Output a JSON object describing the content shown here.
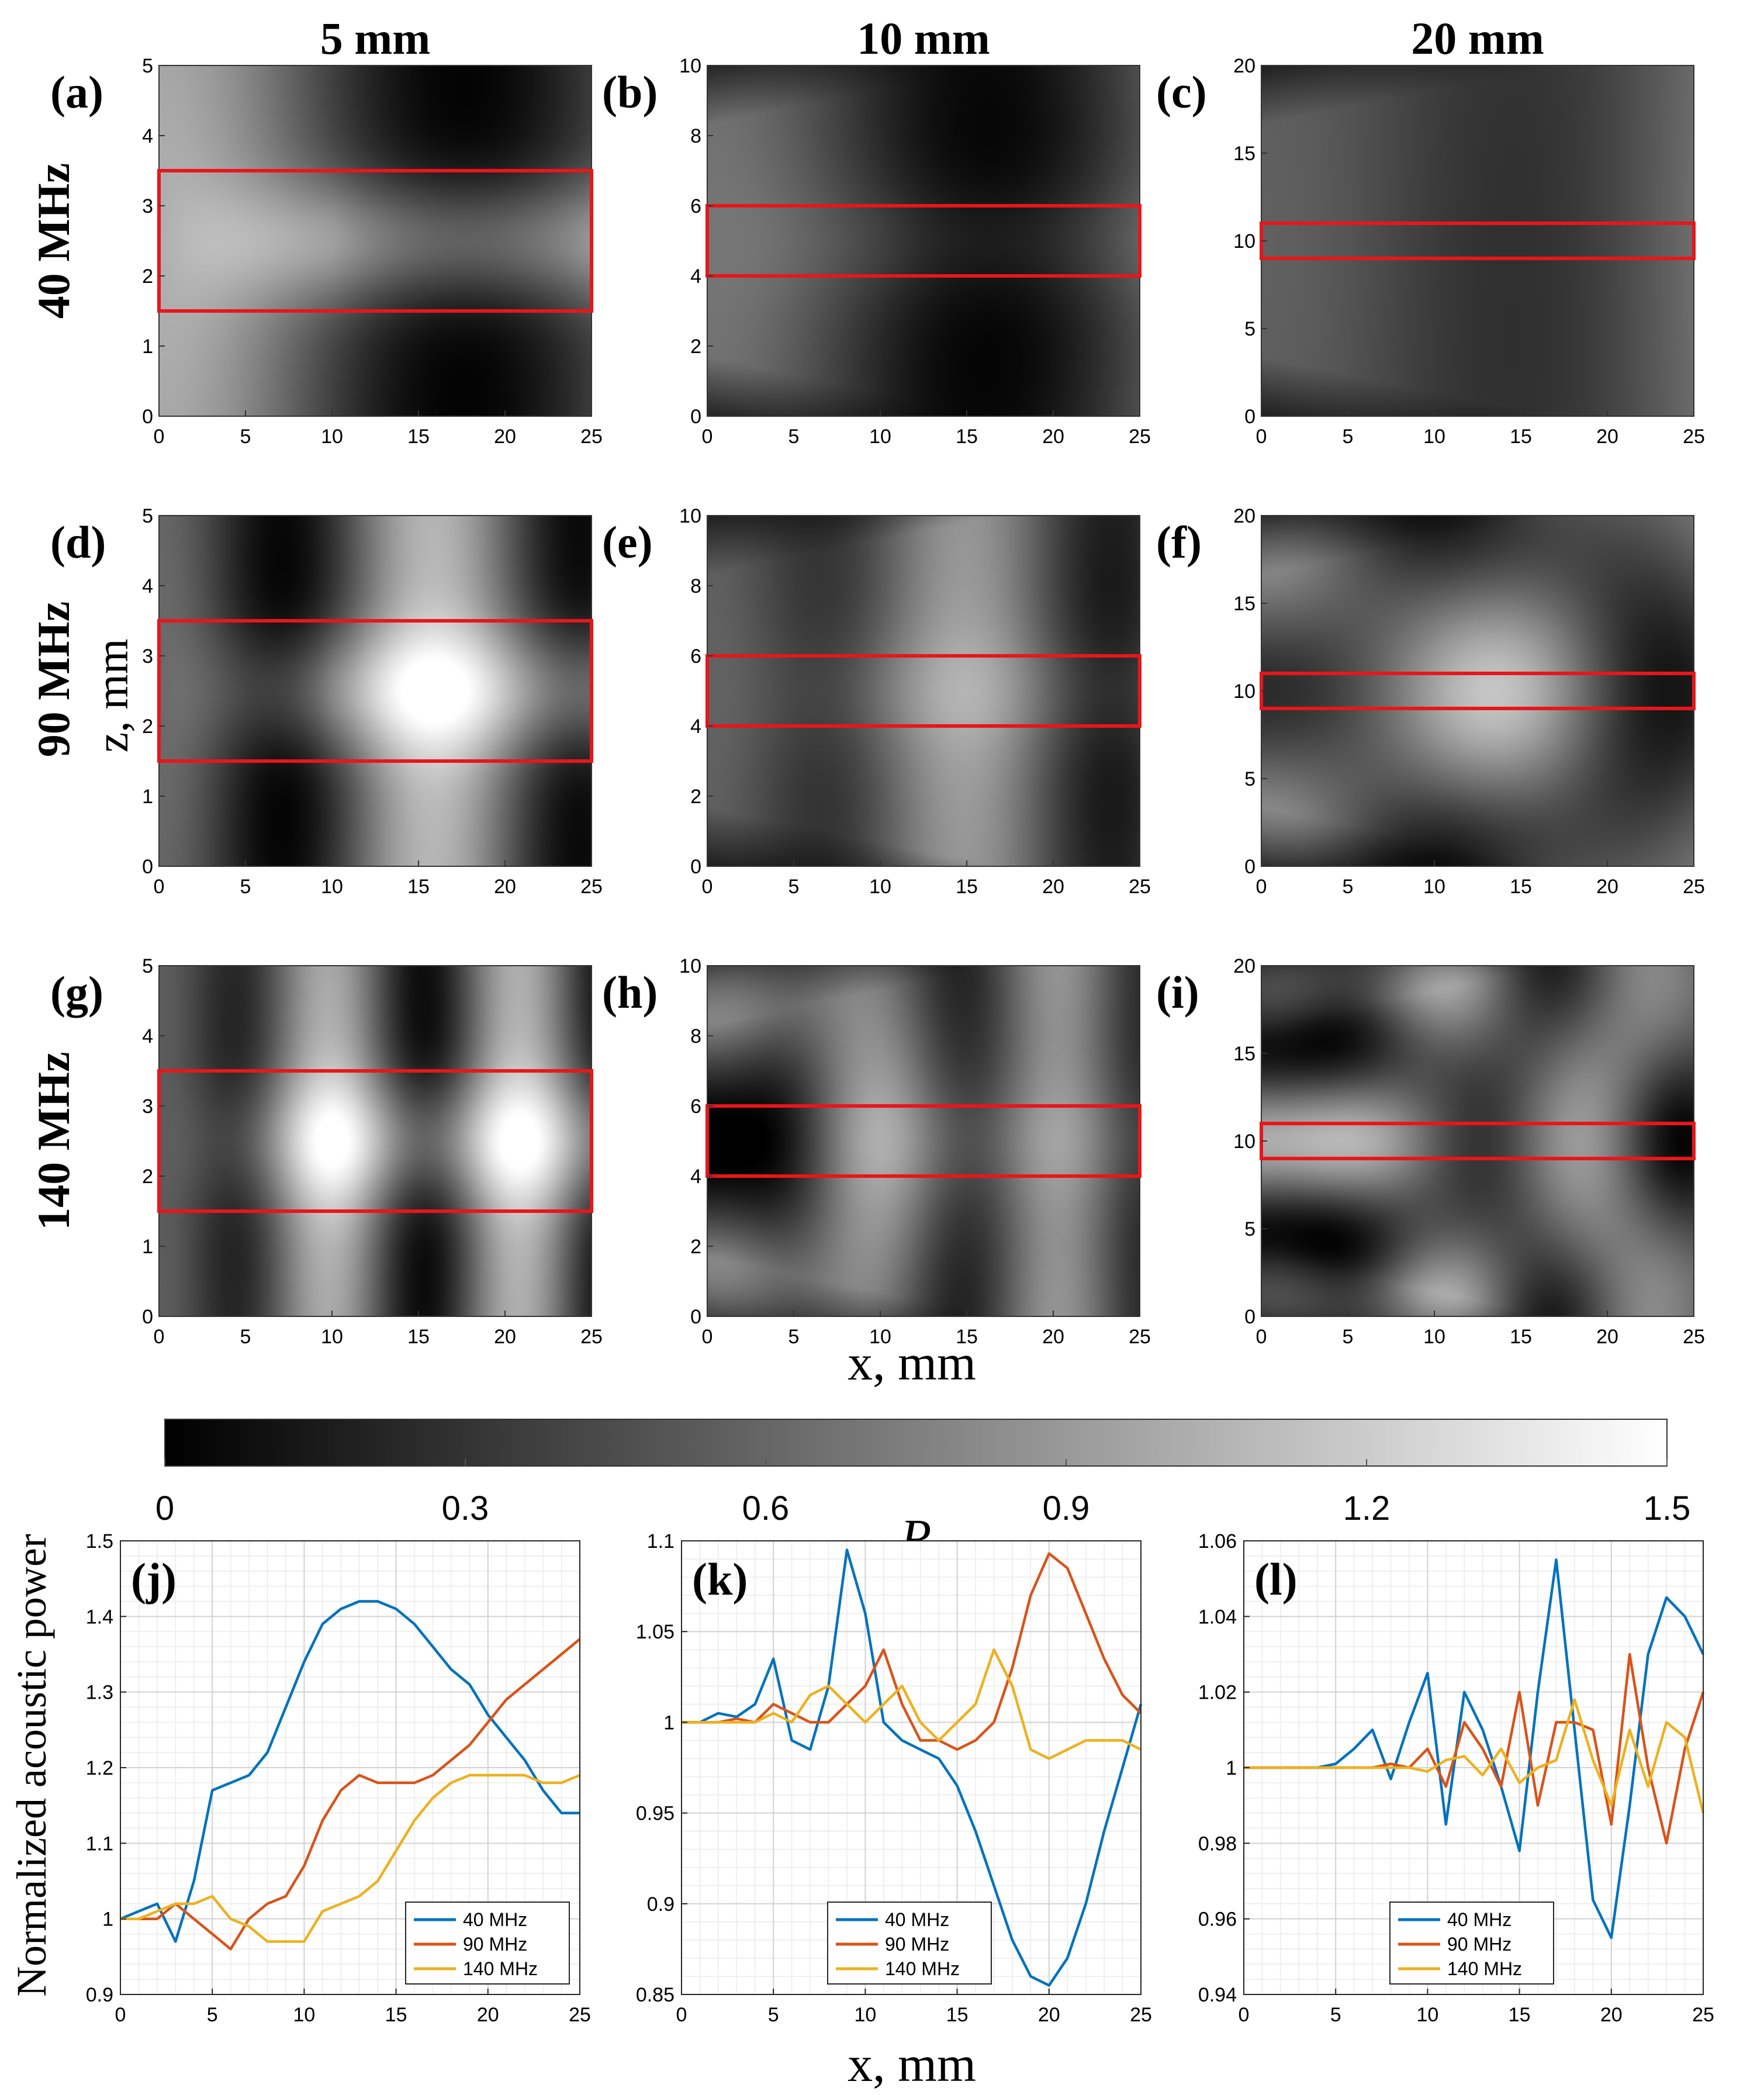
{
  "figure": {
    "column_headers": [
      "5 mm",
      "10 mm",
      "20 mm"
    ],
    "row_headers": [
      "40 MHz",
      "90 MHz",
      "140 MHz"
    ],
    "shared_labels": {
      "z_axis": "z, mm",
      "x_axis_top": "x, mm",
      "x_axis_bottom": "x, mm",
      "colorbar_label": "P",
      "line_ylabel": "Normalized acoustic power"
    }
  },
  "colors": {
    "roi_box": "#E8161B",
    "series_40": "#0072BD",
    "series_90": "#D95319",
    "series_140": "#EDB120"
  },
  "chart_data": [
    {
      "type": "heatmap",
      "panel": "(a)",
      "thickness": "5 mm",
      "frequency": "40 MHz",
      "xlabel": "x, mm",
      "ylabel": "z, mm",
      "xlim": [
        0,
        25
      ],
      "ylim": [
        0,
        5
      ],
      "xticks": [
        "0",
        "5",
        "10",
        "15",
        "20",
        "25"
      ],
      "yticks": [
        "0",
        "1",
        "2",
        "3",
        "4",
        "5"
      ],
      "roi": {
        "x": [
          0,
          25
        ],
        "z": [
          1.5,
          3.5
        ]
      },
      "colormap": "gray",
      "clim": [
        0,
        1.5
      ]
    },
    {
      "type": "heatmap",
      "panel": "(b)",
      "thickness": "10 mm",
      "frequency": "40 MHz",
      "xlim": [
        0,
        25
      ],
      "ylim": [
        0,
        10
      ],
      "xticks": [
        "0",
        "5",
        "10",
        "15",
        "20",
        "25"
      ],
      "yticks": [
        "0",
        "2",
        "4",
        "6",
        "8",
        "10"
      ],
      "roi": {
        "x": [
          0,
          25
        ],
        "z": [
          4,
          6
        ]
      },
      "colormap": "gray",
      "clim": [
        0,
        1.5
      ]
    },
    {
      "type": "heatmap",
      "panel": "(c)",
      "thickness": "20 mm",
      "frequency": "40 MHz",
      "xlim": [
        0,
        25
      ],
      "ylim": [
        0,
        20
      ],
      "xticks": [
        "0",
        "5",
        "10",
        "15",
        "20",
        "25"
      ],
      "yticks": [
        "0",
        "5",
        "10",
        "15",
        "20"
      ],
      "roi": {
        "x": [
          0,
          25
        ],
        "z": [
          9,
          11
        ]
      },
      "colormap": "gray",
      "clim": [
        0,
        1.5
      ]
    },
    {
      "type": "heatmap",
      "panel": "(d)",
      "thickness": "5 mm",
      "frequency": "90 MHz",
      "xlim": [
        0,
        25
      ],
      "ylim": [
        0,
        5
      ],
      "xticks": [
        "0",
        "5",
        "10",
        "15",
        "20",
        "25"
      ],
      "yticks": [
        "0",
        "1",
        "2",
        "3",
        "4",
        "5"
      ],
      "roi": {
        "x": [
          0,
          25
        ],
        "z": [
          1.5,
          3.5
        ]
      },
      "colormap": "gray",
      "clim": [
        0,
        1.5
      ]
    },
    {
      "type": "heatmap",
      "panel": "(e)",
      "thickness": "10 mm",
      "frequency": "90 MHz",
      "xlim": [
        0,
        25
      ],
      "ylim": [
        0,
        10
      ],
      "xticks": [
        "0",
        "5",
        "10",
        "15",
        "20",
        "25"
      ],
      "yticks": [
        "0",
        "2",
        "4",
        "6",
        "8",
        "10"
      ],
      "roi": {
        "x": [
          0,
          25
        ],
        "z": [
          4,
          6
        ]
      },
      "colormap": "gray",
      "clim": [
        0,
        1.5
      ]
    },
    {
      "type": "heatmap",
      "panel": "(f)",
      "thickness": "20 mm",
      "frequency": "90 MHz",
      "xlim": [
        0,
        25
      ],
      "ylim": [
        0,
        20
      ],
      "xticks": [
        "0",
        "5",
        "10",
        "15",
        "20",
        "25"
      ],
      "yticks": [
        "0",
        "5",
        "10",
        "15",
        "20"
      ],
      "roi": {
        "x": [
          0,
          25
        ],
        "z": [
          9,
          11
        ]
      },
      "colormap": "gray",
      "clim": [
        0,
        1.5
      ]
    },
    {
      "type": "heatmap",
      "panel": "(g)",
      "thickness": "5 mm",
      "frequency": "140 MHz",
      "xlim": [
        0,
        25
      ],
      "ylim": [
        0,
        5
      ],
      "xticks": [
        "0",
        "5",
        "10",
        "15",
        "20",
        "25"
      ],
      "yticks": [
        "0",
        "1",
        "2",
        "3",
        "4",
        "5"
      ],
      "roi": {
        "x": [
          0,
          25
        ],
        "z": [
          1.5,
          3.5
        ]
      },
      "colormap": "gray",
      "clim": [
        0,
        1.5
      ]
    },
    {
      "type": "heatmap",
      "panel": "(h)",
      "thickness": "10 mm",
      "frequency": "140 MHz",
      "xlim": [
        0,
        25
      ],
      "ylim": [
        0,
        10
      ],
      "xticks": [
        "0",
        "5",
        "10",
        "15",
        "20",
        "25"
      ],
      "yticks": [
        "0",
        "2",
        "4",
        "6",
        "8",
        "10"
      ],
      "roi": {
        "x": [
          0,
          25
        ],
        "z": [
          4,
          6
        ]
      },
      "colormap": "gray",
      "clim": [
        0,
        1.5
      ]
    },
    {
      "type": "heatmap",
      "panel": "(i)",
      "thickness": "20 mm",
      "frequency": "140 MHz",
      "xlim": [
        0,
        25
      ],
      "ylim": [
        0,
        20
      ],
      "xticks": [
        "0",
        "5",
        "10",
        "15",
        "20",
        "25"
      ],
      "yticks": [
        "0",
        "5",
        "10",
        "15",
        "20"
      ],
      "roi": {
        "x": [
          0,
          25
        ],
        "z": [
          9,
          11
        ]
      },
      "colormap": "gray",
      "clim": [
        0,
        1.5
      ]
    },
    {
      "type": "colorbar",
      "label": "P",
      "range": [
        0,
        1.5
      ],
      "ticks": [
        "0",
        "0.3",
        "0.6",
        "0.9",
        "1.2",
        "1.5"
      ]
    },
    {
      "type": "line",
      "panel": "(j)",
      "thickness": "5 mm",
      "xlabel": "x, mm",
      "ylabel": "Normalized acoustic power",
      "xlim": [
        0,
        25
      ],
      "ylim": [
        0.9,
        1.5
      ],
      "xticks": [
        "0",
        "5",
        "10",
        "15",
        "20",
        "25"
      ],
      "yticks": [
        "0.9",
        "1",
        "1.1",
        "1.2",
        "1.3",
        "1.4",
        "1.5"
      ],
      "grid": true,
      "legend_position": "bottom-right",
      "x": [
        0,
        1,
        2,
        3,
        4,
        5,
        6,
        7,
        8,
        9,
        10,
        11,
        12,
        13,
        14,
        15,
        16,
        17,
        18,
        19,
        20,
        21,
        22,
        23,
        24,
        25
      ],
      "series": [
        {
          "name": "40  MHz",
          "values": [
            1.0,
            1.01,
            1.02,
            0.97,
            1.05,
            1.17,
            1.18,
            1.19,
            1.22,
            1.28,
            1.34,
            1.39,
            1.41,
            1.42,
            1.42,
            1.41,
            1.39,
            1.36,
            1.33,
            1.31,
            1.27,
            1.24,
            1.21,
            1.17,
            1.14,
            1.14
          ]
        },
        {
          "name": "90  MHz",
          "values": [
            1.0,
            1.0,
            1.0,
            1.02,
            1.0,
            0.98,
            0.96,
            1.0,
            1.02,
            1.03,
            1.07,
            1.13,
            1.17,
            1.19,
            1.18,
            1.18,
            1.18,
            1.19,
            1.21,
            1.23,
            1.26,
            1.29,
            1.31,
            1.33,
            1.35,
            1.37
          ]
        },
        {
          "name": "140  MHz",
          "values": [
            1.0,
            1.0,
            1.01,
            1.02,
            1.02,
            1.03,
            1.0,
            0.99,
            0.97,
            0.97,
            0.97,
            1.01,
            1.02,
            1.03,
            1.05,
            1.09,
            1.13,
            1.16,
            1.18,
            1.19,
            1.19,
            1.19,
            1.19,
            1.18,
            1.18,
            1.19
          ]
        }
      ]
    },
    {
      "type": "line",
      "panel": "(k)",
      "thickness": "10 mm",
      "xlabel": "x, mm",
      "xlim": [
        0,
        25
      ],
      "ylim": [
        0.85,
        1.1
      ],
      "xticks": [
        "0",
        "5",
        "10",
        "15",
        "20",
        "25"
      ],
      "yticks": [
        "0.85",
        "0.9",
        "0.95",
        "1",
        "1.05",
        "1.1"
      ],
      "grid": true,
      "legend_position": "bottom-left",
      "x": [
        0,
        1,
        2,
        3,
        4,
        5,
        6,
        7,
        8,
        9,
        10,
        11,
        12,
        13,
        14,
        15,
        16,
        17,
        18,
        19,
        20,
        21,
        22,
        23,
        24,
        25
      ],
      "series": [
        {
          "name": "40  MHz",
          "values": [
            1.0,
            1.0,
            1.005,
            1.003,
            1.01,
            1.035,
            0.99,
            0.985,
            1.02,
            1.095,
            1.06,
            1.0,
            0.99,
            0.985,
            0.98,
            0.965,
            0.94,
            0.91,
            0.88,
            0.86,
            0.855,
            0.87,
            0.9,
            0.94,
            0.975,
            1.01
          ]
        },
        {
          "name": "90  MHz",
          "values": [
            1.0,
            1.0,
            1.0,
            1.002,
            1.0,
            1.01,
            1.005,
            1.0,
            1.0,
            1.01,
            1.02,
            1.04,
            1.01,
            0.99,
            0.99,
            0.985,
            0.99,
            1.0,
            1.03,
            1.07,
            1.093,
            1.085,
            1.06,
            1.035,
            1.015,
            1.005
          ]
        },
        {
          "name": "140  MHz",
          "values": [
            1.0,
            1.0,
            1.0,
            1.0,
            1.0,
            1.005,
            1.0,
            1.015,
            1.02,
            1.01,
            1.0,
            1.01,
            1.02,
            1.0,
            0.99,
            1.0,
            1.01,
            1.04,
            1.02,
            0.985,
            0.98,
            0.985,
            0.99,
            0.99,
            0.99,
            0.985
          ]
        }
      ]
    },
    {
      "type": "line",
      "panel": "(l)",
      "thickness": "20 mm",
      "xlabel": "x, mm",
      "xlim": [
        0,
        25
      ],
      "ylim": [
        0.94,
        1.06
      ],
      "xticks": [
        "0",
        "5",
        "10",
        "15",
        "20",
        "25"
      ],
      "yticks": [
        "0.94",
        "0.96",
        "0.98",
        "1",
        "1.02",
        "1.04",
        "1.06"
      ],
      "grid": true,
      "legend_position": "bottom-left",
      "x": [
        0,
        1,
        2,
        3,
        4,
        5,
        6,
        7,
        8,
        9,
        10,
        11,
        12,
        13,
        14,
        15,
        16,
        17,
        18,
        19,
        20,
        21,
        22,
        23,
        24,
        25
      ],
      "series": [
        {
          "name": "40  MHz",
          "values": [
            1.0,
            1.0,
            1.0,
            1.0,
            1.0,
            1.001,
            1.005,
            1.01,
            0.997,
            1.012,
            1.025,
            0.985,
            1.02,
            1.01,
            0.995,
            0.978,
            1.02,
            1.055,
            1.01,
            0.965,
            0.955,
            0.99,
            1.03,
            1.045,
            1.04,
            1.03
          ]
        },
        {
          "name": "90  MHz",
          "values": [
            1.0,
            1.0,
            1.0,
            1.0,
            1.0,
            1.0,
            1.0,
            1.0,
            1.001,
            1.0,
            1.005,
            0.995,
            1.012,
            1.005,
            0.995,
            1.02,
            0.99,
            1.012,
            1.012,
            1.01,
            0.985,
            1.03,
            1.0,
            0.98,
            1.005,
            1.02
          ]
        },
        {
          "name": "140  MHz",
          "values": [
            1.0,
            1.0,
            1.0,
            1.0,
            1.0,
            1.0,
            1.0,
            1.0,
            1.0,
            1.0,
            0.999,
            1.002,
            1.003,
            0.998,
            1.005,
            0.996,
            1.0,
            1.002,
            1.018,
            1.002,
            0.99,
            1.01,
            0.995,
            1.012,
            1.008,
            0.988
          ]
        }
      ]
    }
  ]
}
